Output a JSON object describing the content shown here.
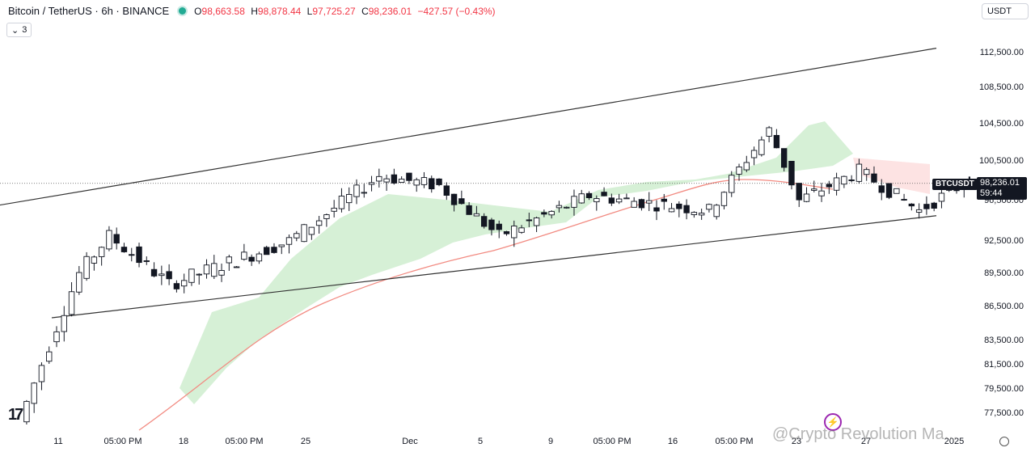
{
  "header": {
    "title": "Bitcoin / TetherUS · 6h · BINANCE",
    "ohlc": {
      "o_label": "O",
      "o": "98,663.58",
      "h_label": "H",
      "h": "98,878.44",
      "l_label": "L",
      "l": "97,725.27",
      "c_label": "C",
      "c": "98,236.01",
      "change": "−427.57 (−0.43%)"
    },
    "collapse_label": "3",
    "currency": "USDT"
  },
  "watermark": "@Crypto Revolution Ma...",
  "colors": {
    "up": "#131722",
    "down": "#131722",
    "cloud": "#c8ebc8",
    "cloud_red": "#fcdcdc",
    "ma": "#f28b82",
    "channel": "#333333"
  },
  "chart_data": {
    "type": "candlestick",
    "symbol_tag": "BTCUSDT",
    "last_price": "98,236.01",
    "countdown": "59:44",
    "y_ticks": [
      "112,500.00",
      "108,500.00",
      "104,500.00",
      "100,500.00",
      "96,500.00",
      "92,500.00",
      "89,500.00",
      "86,500.00",
      "83,500.00",
      "81,500.00",
      "79,500.00",
      "77,500.00"
    ],
    "x_ticks": [
      "11",
      "05:00 PM",
      "18",
      "05:00 PM",
      "25",
      "Dec",
      "5",
      "9",
      "05:00 PM",
      "16",
      "05:00 PM",
      "23",
      "27",
      "2025"
    ],
    "key_points": [
      {
        "date": "Nov 10",
        "price": 76800
      },
      {
        "date": "Nov 12",
        "price": 89500
      },
      {
        "date": "Nov 13",
        "price": 93000
      },
      {
        "date": "Nov 15",
        "price": 88500
      },
      {
        "date": "Nov 19",
        "price": 92500
      },
      {
        "date": "Nov 22",
        "price": 99000
      },
      {
        "date": "Nov 24",
        "price": 98000
      },
      {
        "date": "Nov 26",
        "price": 93000
      },
      {
        "date": "Nov 29",
        "price": 97000
      },
      {
        "date": "Dec 3",
        "price": 95500
      },
      {
        "date": "Dec 5",
        "price": 103800
      },
      {
        "date": "Dec 6",
        "price": 96500
      },
      {
        "date": "Dec 8",
        "price": 99500
      },
      {
        "date": "Dec 10",
        "price": 95500
      },
      {
        "date": "Dec 13",
        "price": 101000
      },
      {
        "date": "Dec 15",
        "price": 104000
      },
      {
        "date": "Dec 17",
        "price": 107500
      },
      {
        "date": "Dec 19",
        "price": 98000
      },
      {
        "date": "Dec 20",
        "price": 93000
      },
      {
        "date": "Dec 22",
        "price": 97500
      },
      {
        "date": "Dec 24",
        "price": 94500
      },
      {
        "date": "Dec 25",
        "price": 98236
      }
    ],
    "channel_upper": [
      {
        "date": "Nov 9",
        "price": 96000
      },
      {
        "date": "Dec 31",
        "price": 113000
      }
    ],
    "channel_lower": [
      {
        "date": "Nov 11",
        "price": 85500
      },
      {
        "date": "Dec 31",
        "price": 95000
      }
    ]
  }
}
